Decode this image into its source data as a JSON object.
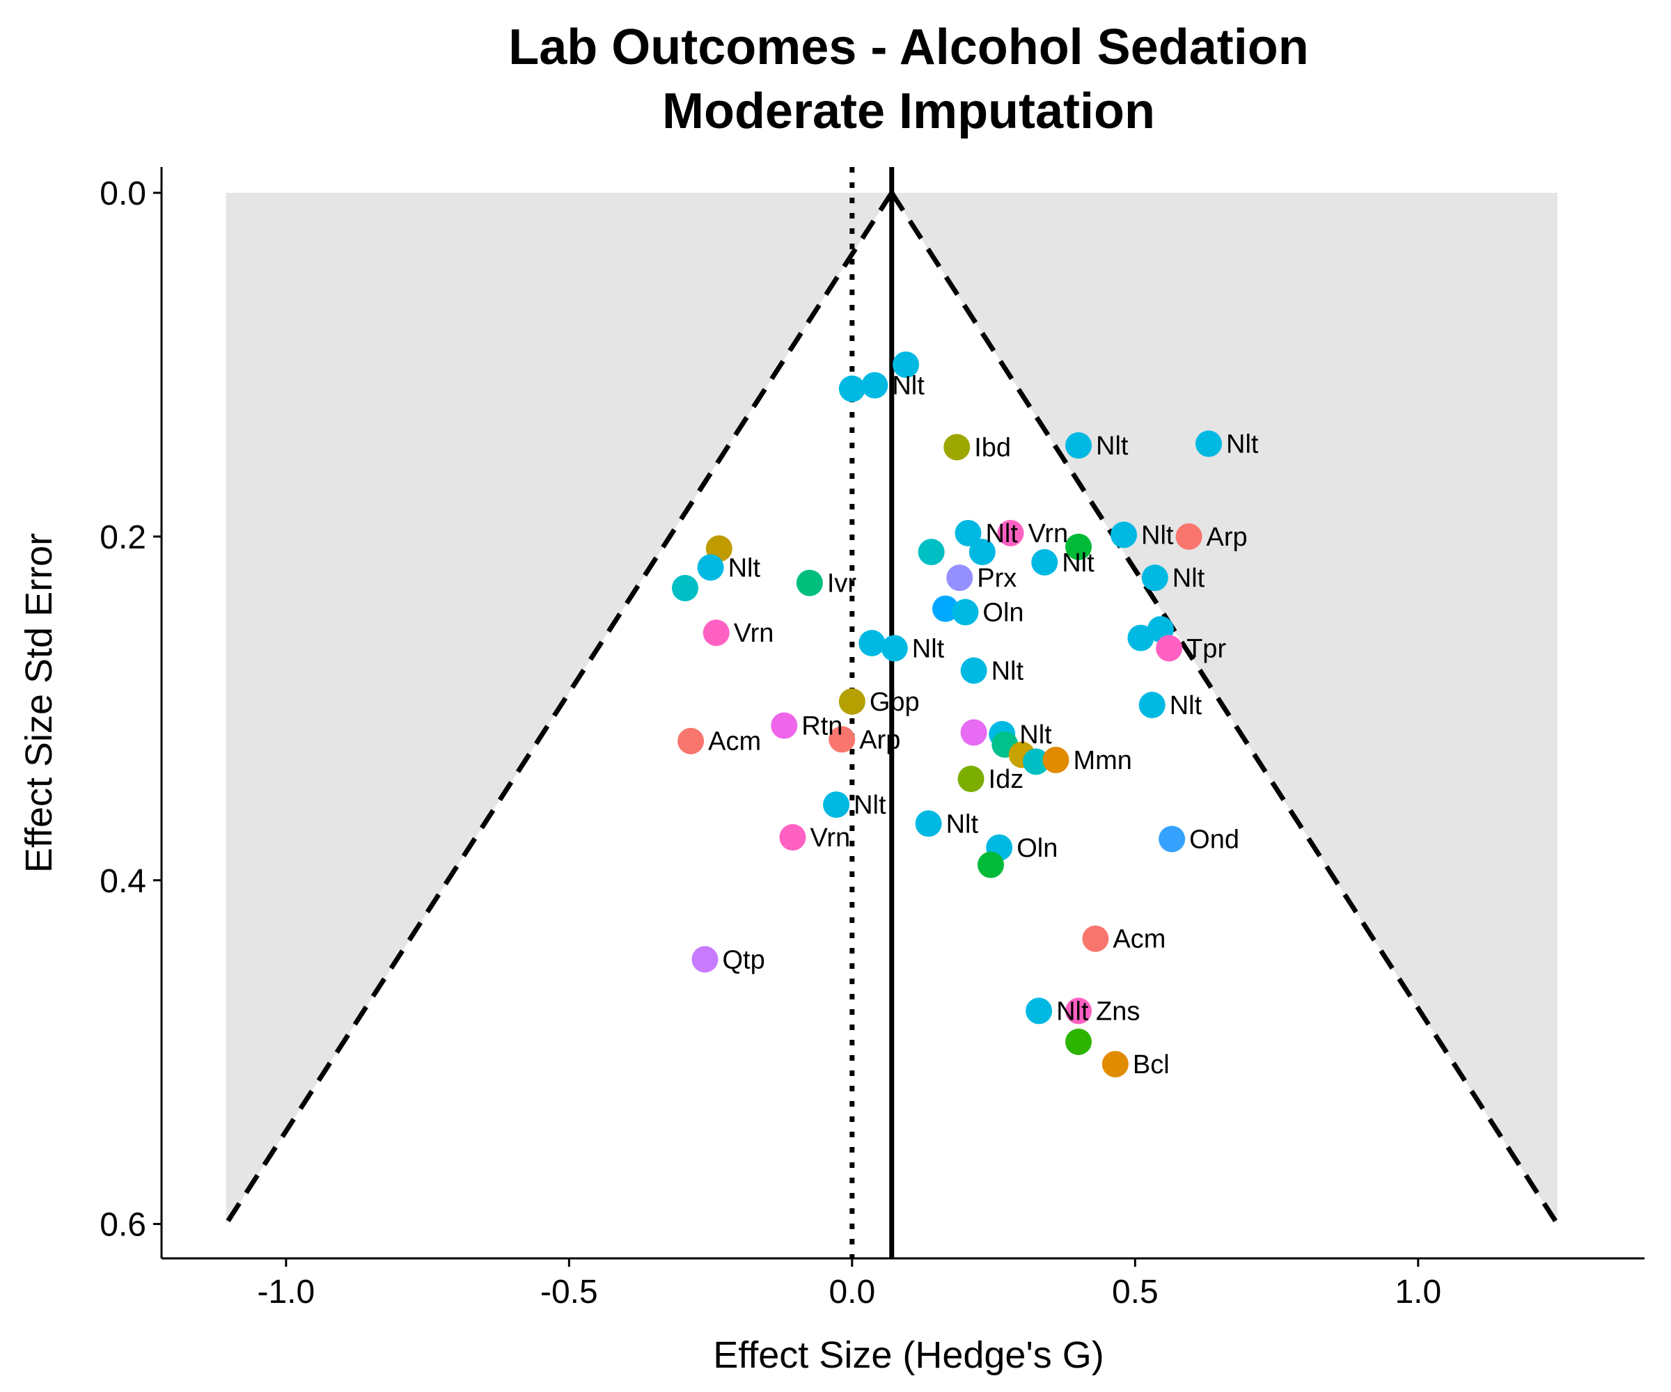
{
  "chart_data": {
    "type": "scatter",
    "title": "Lab Outcomes - Alcohol Sedation",
    "subtitle": "Moderate Imputation",
    "xlabel": "Effect Size (Hedge's G)",
    "ylabel": "Effect Size Std Error",
    "xlim": [
      -1.22,
      1.4
    ],
    "ylim": [
      -0.015,
      0.62
    ],
    "y_reversed": true,
    "x_ticks": [
      {
        "value": -1.0,
        "label": "-1.0"
      },
      {
        "value": -0.5,
        "label": "-0.5"
      },
      {
        "value": 0.0,
        "label": "0.0"
      },
      {
        "value": 0.5,
        "label": "0.5"
      },
      {
        "value": 1.0,
        "label": "1.0"
      }
    ],
    "y_ticks": [
      {
        "value": 0.0,
        "label": "0.0"
      },
      {
        "value": 0.2,
        "label": "0.2"
      },
      {
        "value": 0.4,
        "label": "0.4"
      },
      {
        "value": 0.6,
        "label": "0.6"
      }
    ],
    "grid": false,
    "summary_effect": 0.07,
    "null_effect": 0.0,
    "funnel": {
      "apex_x": 0.07,
      "apex_y": 0.0,
      "max_se": 0.6,
      "z": 1.96
    },
    "points": [
      {
        "x": 0.095,
        "y": 0.1,
        "label": "",
        "color": "#00B9E3"
      },
      {
        "x": 0.04,
        "y": 0.112,
        "label": "Nlt",
        "color": "#00B9E3"
      },
      {
        "x": 0.0,
        "y": 0.114,
        "label": "",
        "color": "#00B9E3"
      },
      {
        "x": 0.185,
        "y": 0.148,
        "label": "Ibd",
        "color": "#9CA700"
      },
      {
        "x": 0.4,
        "y": 0.147,
        "label": "Nlt",
        "color": "#00B9E3"
      },
      {
        "x": 0.63,
        "y": 0.146,
        "label": "Nlt",
        "color": "#00B9E3"
      },
      {
        "x": 0.205,
        "y": 0.198,
        "label": "Nlt",
        "color": "#00B9E3"
      },
      {
        "x": 0.28,
        "y": 0.198,
        "label": "Vrn",
        "color": "#FF61C3"
      },
      {
        "x": 0.4,
        "y": 0.206,
        "label": "",
        "color": "#00BA38"
      },
      {
        "x": 0.48,
        "y": 0.199,
        "label": "Nlt",
        "color": "#00B9E3"
      },
      {
        "x": 0.595,
        "y": 0.2,
        "label": "Arp",
        "color": "#F8766D"
      },
      {
        "x": 0.14,
        "y": 0.209,
        "label": "",
        "color": "#00BFC4"
      },
      {
        "x": 0.23,
        "y": 0.209,
        "label": "",
        "color": "#00B9E3"
      },
      {
        "x": 0.34,
        "y": 0.215,
        "label": "Nlt",
        "color": "#00B9E3"
      },
      {
        "x": -0.235,
        "y": 0.207,
        "label": "",
        "color": "#C09B00"
      },
      {
        "x": -0.25,
        "y": 0.218,
        "label": "Nlt",
        "color": "#00B9E3"
      },
      {
        "x": -0.295,
        "y": 0.23,
        "label": "",
        "color": "#00BFC4"
      },
      {
        "x": -0.075,
        "y": 0.227,
        "label": "Ivr",
        "color": "#00BF7D"
      },
      {
        "x": 0.19,
        "y": 0.224,
        "label": "Prx",
        "color": "#9590FF"
      },
      {
        "x": 0.535,
        "y": 0.224,
        "label": "Nlt",
        "color": "#00B9E3"
      },
      {
        "x": 0.165,
        "y": 0.242,
        "label": "",
        "color": "#00A9FF"
      },
      {
        "x": 0.2,
        "y": 0.244,
        "label": "Oln",
        "color": "#00B9E3"
      },
      {
        "x": -0.24,
        "y": 0.256,
        "label": "Vrn",
        "color": "#FF61C3"
      },
      {
        "x": 0.035,
        "y": 0.262,
        "label": "",
        "color": "#00B9E3"
      },
      {
        "x": 0.075,
        "y": 0.265,
        "label": "Nlt",
        "color": "#00B9E3"
      },
      {
        "x": 0.51,
        "y": 0.259,
        "label": "",
        "color": "#00B9E3"
      },
      {
        "x": 0.545,
        "y": 0.254,
        "label": "",
        "color": "#00B9E3"
      },
      {
        "x": 0.56,
        "y": 0.265,
        "label": "Tpr",
        "color": "#FF61C3"
      },
      {
        "x": 0.215,
        "y": 0.278,
        "label": "Nlt",
        "color": "#00B9E3"
      },
      {
        "x": 0.0,
        "y": 0.296,
        "label": "Gbp",
        "color": "#B4A000"
      },
      {
        "x": 0.53,
        "y": 0.298,
        "label": "Nlt",
        "color": "#00B9E3"
      },
      {
        "x": -0.12,
        "y": 0.31,
        "label": "Rtn",
        "color": "#F066EA"
      },
      {
        "x": -0.018,
        "y": 0.318,
        "label": "Arp",
        "color": "#F8766D"
      },
      {
        "x": -0.285,
        "y": 0.319,
        "label": "Acm",
        "color": "#F8766D"
      },
      {
        "x": 0.215,
        "y": 0.314,
        "label": "",
        "color": "#E76BF3"
      },
      {
        "x": 0.265,
        "y": 0.315,
        "label": "Nlt",
        "color": "#00B9E3"
      },
      {
        "x": 0.27,
        "y": 0.321,
        "label": "",
        "color": "#00C08B"
      },
      {
        "x": 0.3,
        "y": 0.327,
        "label": "",
        "color": "#C8A200"
      },
      {
        "x": 0.325,
        "y": 0.331,
        "label": "",
        "color": "#00BFC4"
      },
      {
        "x": 0.36,
        "y": 0.33,
        "label": "Mmn",
        "color": "#E08B00"
      },
      {
        "x": 0.21,
        "y": 0.341,
        "label": "Idz",
        "color": "#7CAE00"
      },
      {
        "x": -0.028,
        "y": 0.356,
        "label": "Nlt",
        "color": "#00B9E3"
      },
      {
        "x": 0.135,
        "y": 0.367,
        "label": "Nlt",
        "color": "#00B9E3"
      },
      {
        "x": -0.105,
        "y": 0.375,
        "label": "Vrn",
        "color": "#FF61C3"
      },
      {
        "x": 0.26,
        "y": 0.381,
        "label": "Oln",
        "color": "#00B9E3"
      },
      {
        "x": 0.565,
        "y": 0.376,
        "label": "Ond",
        "color": "#35A2FF"
      },
      {
        "x": 0.245,
        "y": 0.391,
        "label": "",
        "color": "#00BA38"
      },
      {
        "x": 0.43,
        "y": 0.434,
        "label": "Acm",
        "color": "#F8766D"
      },
      {
        "x": -0.26,
        "y": 0.446,
        "label": "Qtp",
        "color": "#C77CFF"
      },
      {
        "x": 0.33,
        "y": 0.476,
        "label": "Nlt",
        "color": "#00B9E3"
      },
      {
        "x": 0.4,
        "y": 0.476,
        "label": "Zns",
        "color": "#FF61C3"
      },
      {
        "x": 0.4,
        "y": 0.494,
        "label": "",
        "color": "#2CB400"
      },
      {
        "x": 0.465,
        "y": 0.507,
        "label": "Bcl",
        "color": "#E08B00"
      }
    ]
  }
}
